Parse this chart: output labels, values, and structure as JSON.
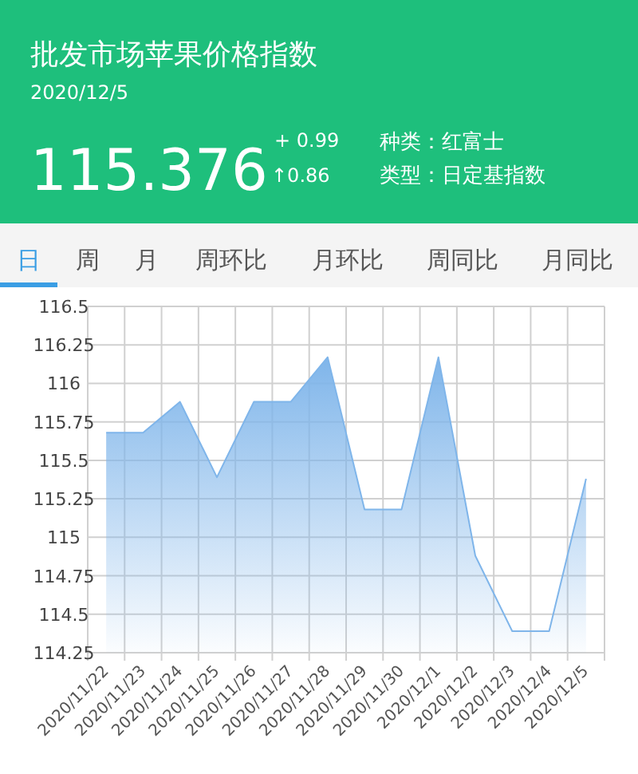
{
  "chart_data": {
    "type": "area",
    "title": "批发市场苹果价格指数",
    "subtitle": "2020/12/5",
    "annotations": [
      "115.376",
      "+ 0.99",
      "↑0.86",
      "种类：红富士",
      "类型：日定基指数",
      "日",
      "周",
      "月",
      "周环比",
      "月环比",
      "周同比",
      "月同比"
    ],
    "categories": [
      "2020/11/22",
      "2020/11/23",
      "2020/11/24",
      "2020/11/25",
      "2020/11/26",
      "2020/11/27",
      "2020/11/28",
      "2020/11/29",
      "2020/11/30",
      "2020/12/1",
      "2020/12/2",
      "2020/12/3",
      "2020/12/4",
      "2020/12/5"
    ],
    "series": [
      {
        "color": "#7fb5ea",
        "values": [
          115.68,
          115.68,
          115.88,
          115.39,
          115.88,
          115.88,
          116.17,
          115.18,
          115.18,
          116.17,
          114.88,
          114.39,
          114.39,
          115.38
        ]
      }
    ],
    "ylim": [
      114.25,
      116.5
    ],
    "yticks": [
      114.25,
      114.5,
      114.75,
      115,
      115.25,
      115.5,
      115.75,
      116,
      116.25,
      116.5
    ],
    "grid": true
  }
}
